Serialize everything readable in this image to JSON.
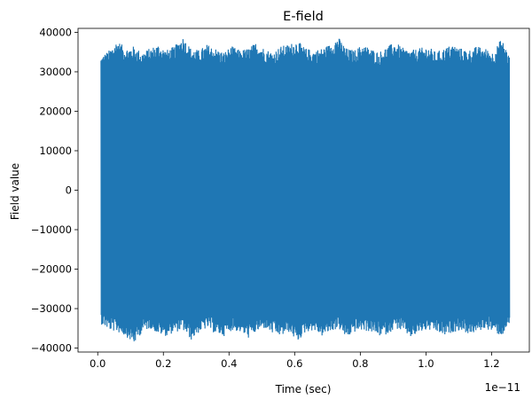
{
  "chart_data": {
    "type": "line",
    "title": "E-field",
    "xlabel": "Time (sec)",
    "ylabel": "Field value",
    "x_offset_label": "1e−11",
    "xlim": [
      -0.06,
      1.315
    ],
    "ylim": [
      -41000,
      41000
    ],
    "x_ticks": [
      0.0,
      0.2,
      0.4,
      0.6,
      0.8,
      1.0,
      1.2
    ],
    "x_tick_labels": [
      "0.0",
      "0.2",
      "0.4",
      "0.6",
      "0.8",
      "1.0",
      "1.2"
    ],
    "y_ticks": [
      40000,
      30000,
      20000,
      10000,
      0,
      -10000,
      -20000,
      -30000,
      -40000
    ],
    "y_tick_labels": [
      "40000",
      "30000",
      "20000",
      "10000",
      "0",
      "−10000",
      "−20000",
      "−30000",
      "−40000"
    ],
    "grid": false,
    "series": [
      {
        "color": "#1f77b4",
        "x_range": [
          0.01,
          1.255
        ],
        "envelope_approx": {
          "upper": [
            34000,
            35500,
            38000,
            36000,
            36500,
            35000,
            36000,
            37000,
            35500,
            36500,
            39000,
            36000,
            35500,
            37000,
            36000,
            35000,
            36500,
            35500,
            36000,
            37500,
            36000,
            35000,
            36500,
            37000,
            38000,
            36000,
            35500,
            36000,
            37000,
            39000,
            36000,
            35500,
            37000,
            36000,
            35000,
            36500,
            37500,
            36000,
            35500,
            36000,
            36500,
            35000,
            36000,
            37000,
            36000,
            35500,
            36500,
            36000,
            35000,
            38500,
            34000
          ],
          "lower": [
            -34000,
            -35500,
            -36000,
            -37000,
            -39000,
            -36000,
            -35000,
            -36500,
            -37000,
            -36000,
            -35500,
            -38000,
            -36000,
            -35000,
            -36500,
            -37000,
            -35500,
            -36000,
            -37500,
            -36000,
            -35000,
            -36500,
            -37000,
            -36000,
            -38500,
            -36000,
            -35500,
            -37000,
            -36000,
            -35000,
            -37500,
            -36000,
            -35500,
            -36000,
            -37000,
            -36500,
            -35000,
            -36000,
            -37500,
            -36000,
            -35500,
            -36000,
            -37000,
            -36000,
            -35500,
            -36500,
            -36000,
            -35000,
            -36000,
            -37000,
            -34000
          ]
        }
      }
    ]
  }
}
